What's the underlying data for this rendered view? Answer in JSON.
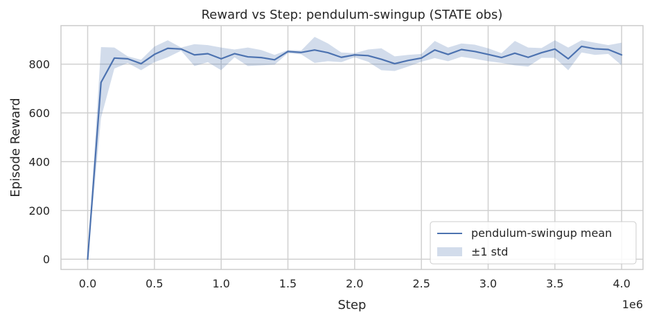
{
  "chart_data": {
    "type": "line",
    "title": "Reward vs Step: pendulum-swingup (STATE obs)",
    "xlabel": "Step",
    "ylabel": "Episode Reward",
    "x_offset_text": "1e6",
    "xlim": [
      -0.2,
      4.16
    ],
    "ylim": [
      -42,
      958
    ],
    "x_ticks": [
      0.0,
      0.5,
      1.0,
      1.5,
      2.0,
      2.5,
      3.0,
      3.5,
      4.0
    ],
    "x_tick_labels": [
      "0.0",
      "0.5",
      "1.0",
      "1.5",
      "2.0",
      "2.5",
      "3.0",
      "3.5",
      "4.0"
    ],
    "y_ticks": [
      0,
      200,
      400,
      600,
      800
    ],
    "y_tick_labels": [
      "0",
      "200",
      "400",
      "600",
      "800"
    ],
    "grid": true,
    "legend_position": "bottom-right",
    "x": [
      0.0,
      0.1,
      0.2,
      0.3,
      0.4,
      0.5,
      0.6,
      0.7,
      0.8,
      0.9,
      1.0,
      1.1,
      1.2,
      1.3,
      1.4,
      1.5,
      1.6,
      1.7,
      1.8,
      1.9,
      2.0,
      2.1,
      2.2,
      2.3,
      2.4,
      2.5,
      2.6,
      2.7,
      2.8,
      2.9,
      3.0,
      3.1,
      3.2,
      3.3,
      3.4,
      3.5,
      3.6,
      3.7,
      3.8,
      3.9,
      4.0
    ],
    "series": [
      {
        "name": "pendulum-swingup mean",
        "color": "#4c72b0",
        "values": [
          0,
          725,
          825,
          822,
          802,
          840,
          865,
          862,
          838,
          843,
          822,
          843,
          830,
          827,
          818,
          852,
          848,
          858,
          847,
          828,
          838,
          835,
          820,
          802,
          815,
          825,
          858,
          840,
          860,
          852,
          840,
          827,
          845,
          828,
          847,
          862,
          822,
          873,
          863,
          860,
          838
        ],
        "band": {
          "name": "±1 std",
          "color": "#4c72b0",
          "opacity": 0.25,
          "upper": [
            0,
            870,
            868,
            832,
            818,
            872,
            898,
            868,
            882,
            878,
            868,
            860,
            868,
            858,
            838,
            858,
            856,
            912,
            885,
            848,
            845,
            860,
            865,
            832,
            838,
            842,
            895,
            868,
            885,
            880,
            865,
            845,
            895,
            868,
            866,
            898,
            868,
            898,
            888,
            878,
            888
          ],
          "lower": [
            0,
            580,
            782,
            805,
            775,
            808,
            828,
            855,
            792,
            808,
            775,
            828,
            792,
            795,
            798,
            845,
            840,
            805,
            812,
            808,
            828,
            810,
            775,
            772,
            790,
            810,
            825,
            812,
            830,
            822,
            812,
            805,
            795,
            790,
            826,
            826,
            775,
            848,
            838,
            842,
            795
          ]
        }
      }
    ]
  }
}
